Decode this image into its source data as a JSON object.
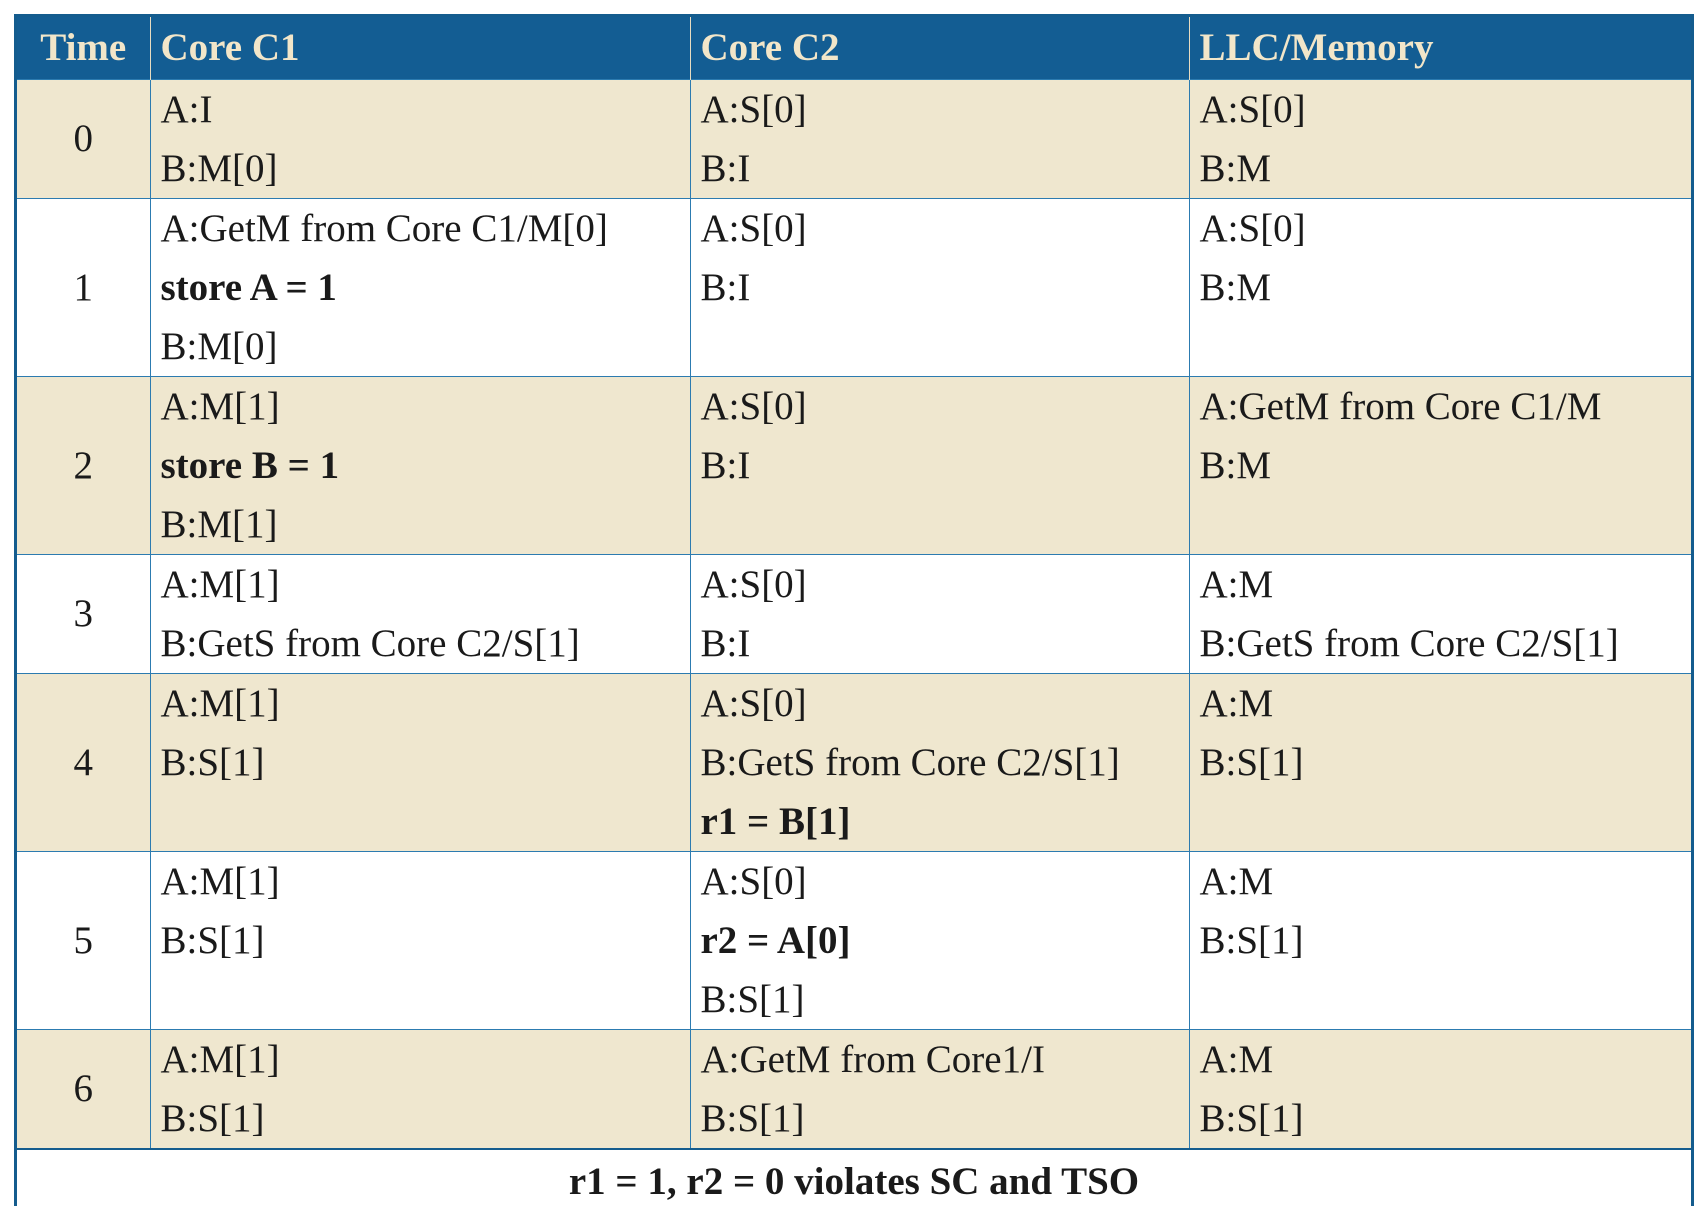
{
  "table": {
    "headers": {
      "time": "Time",
      "core1": "Core C1",
      "core2": "Core C2",
      "memory": "LLC/Memory"
    },
    "rows": [
      {
        "time": "0",
        "core1": [
          {
            "text": "A:I",
            "bold": false
          },
          {
            "text": "B:M[0]",
            "bold": false
          }
        ],
        "core2": [
          {
            "text": "A:S[0]",
            "bold": false
          },
          {
            "text": "B:I",
            "bold": false
          }
        ],
        "memory": [
          {
            "text": "A:S[0]",
            "bold": false
          },
          {
            "text": "B:M",
            "bold": false
          }
        ]
      },
      {
        "time": "1",
        "core1": [
          {
            "text": "A:GetM from Core C1/M[0]",
            "bold": false
          },
          {
            "text": "store A = 1",
            "bold": true
          },
          {
            "text": "B:M[0]",
            "bold": false
          }
        ],
        "core2": [
          {
            "text": "A:S[0]",
            "bold": false
          },
          {
            "text": "B:I",
            "bold": false
          }
        ],
        "memory": [
          {
            "text": "A:S[0]",
            "bold": false
          },
          {
            "text": "B:M",
            "bold": false
          }
        ]
      },
      {
        "time": "2",
        "core1": [
          {
            "text": "A:M[1]",
            "bold": false
          },
          {
            "text": "store B = 1",
            "bold": true
          },
          {
            "text": "B:M[1]",
            "bold": false
          }
        ],
        "core2": [
          {
            "text": "A:S[0]",
            "bold": false
          },
          {
            "text": "B:I",
            "bold": false
          }
        ],
        "memory": [
          {
            "text": "A:GetM from Core C1/M",
            "bold": false
          },
          {
            "text": "B:M",
            "bold": false
          }
        ]
      },
      {
        "time": "3",
        "core1": [
          {
            "text": "A:M[1]",
            "bold": false
          },
          {
            "text": "B:GetS from Core C2/S[1]",
            "bold": false
          }
        ],
        "core2": [
          {
            "text": "A:S[0]",
            "bold": false
          },
          {
            "text": "B:I",
            "bold": false
          }
        ],
        "memory": [
          {
            "text": "A:M",
            "bold": false
          },
          {
            "text": "B:GetS  from Core C2/S[1]",
            "bold": false
          }
        ]
      },
      {
        "time": "4",
        "core1": [
          {
            "text": "A:M[1]",
            "bold": false
          },
          {
            "text": "B:S[1]",
            "bold": false
          }
        ],
        "core2": [
          {
            "text": "A:S[0]",
            "bold": false
          },
          {
            "text": "B:GetS from Core C2/S[1]",
            "bold": false
          },
          {
            "text": "r1 = B[1]",
            "bold": true
          }
        ],
        "memory": [
          {
            "text": "A:M",
            "bold": false
          },
          {
            "text": "B:S[1]",
            "bold": false
          }
        ]
      },
      {
        "time": "5",
        "core1": [
          {
            "text": "A:M[1]",
            "bold": false
          },
          {
            "text": "B:S[1]",
            "bold": false
          }
        ],
        "core2": [
          {
            "text": "A:S[0]",
            "bold": false
          },
          {
            "text": "r2 = A[0]",
            "bold": true
          },
          {
            "text": "B:S[1]",
            "bold": false
          }
        ],
        "memory": [
          {
            "text": "A:M",
            "bold": false
          },
          {
            "text": "B:S[1]",
            "bold": false
          }
        ]
      },
      {
        "time": "6",
        "core1": [
          {
            "text": "A:M[1]",
            "bold": false
          },
          {
            "text": "B:S[1]",
            "bold": false
          }
        ],
        "core2": [
          {
            "text": "A:GetM from Core1/I",
            "bold": false
          },
          {
            "text": "B:S[1]",
            "bold": false
          }
        ],
        "memory": [
          {
            "text": "A:M",
            "bold": false
          },
          {
            "text": "B:S[1]",
            "bold": false
          }
        ]
      }
    ],
    "footer": "r1 = 1, r2 = 0 violates SC and TSO"
  },
  "colors": {
    "header_bg": "#135d93",
    "header_text": "#f2e6c9",
    "shaded_row": "#efe7cf",
    "border": "#2c7bb0"
  }
}
